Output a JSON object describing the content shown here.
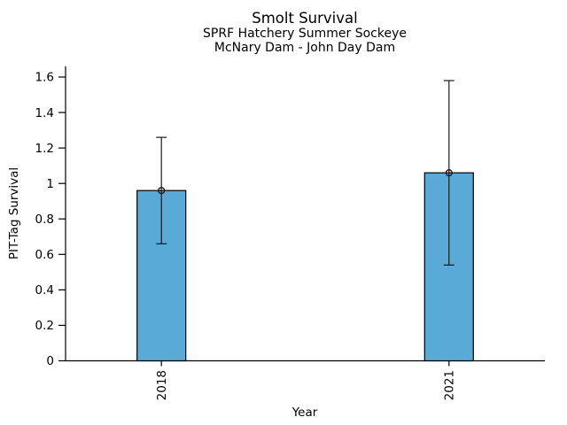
{
  "chart_data": {
    "type": "bar",
    "title": "Smolt Survival",
    "subtitle": [
      "SPRF Hatchery Summer Sockeye",
      "McNary Dam - John Day Dam"
    ],
    "xlabel": "Year",
    "ylabel": "PIT-Tag Survival",
    "categories": [
      "2018",
      "2021"
    ],
    "series": [
      {
        "name": "PIT-Tag Survival",
        "values": [
          0.96,
          1.06
        ],
        "error_low": [
          0.66,
          0.54
        ],
        "error_high": [
          1.26,
          1.58
        ]
      }
    ],
    "yticks": [
      0,
      0.2,
      0.4,
      0.6,
      0.8,
      1,
      1.2,
      1.4,
      1.6
    ],
    "ytick_labels": [
      "0",
      "0.2",
      "0.4",
      "0.6",
      "0.8",
      "1",
      "1.2",
      "1.4",
      "1.6"
    ],
    "ylim": [
      0,
      1.66
    ],
    "grid": false,
    "legend": "none",
    "spines": [
      "left",
      "bottom"
    ],
    "x_tick_rotation": 90,
    "marker": "open-circle",
    "bar_color": "#59AAD6",
    "bar_edge_color": "#000000",
    "error_color": "#1a1a1a",
    "axis_color": "#000000",
    "text_color": "#000000"
  }
}
